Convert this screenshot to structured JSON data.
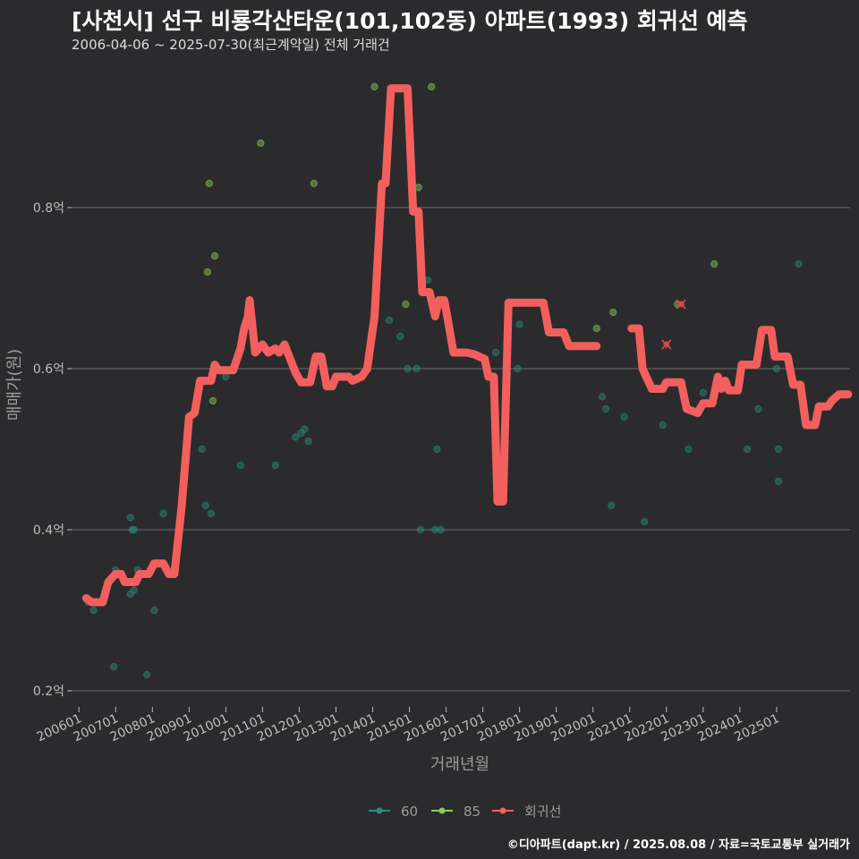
{
  "chart_data": {
    "type": "scatter",
    "title": "[사천시] 선구 비룡각산타운(101,102동) 아파트(1993) 회귀선 예측",
    "subtitle": "2006-04-06 ~ 2025-07-30(최근계약일) 전체 거래건",
    "xlabel": "거래년월",
    "ylabel": "매매가(원)",
    "xlim": [
      2005.8,
      2027.0
    ],
    "ylim": [
      0.18,
      0.98
    ],
    "y_ticks": [
      {
        "value": 0.2,
        "label": "0.2억"
      },
      {
        "value": 0.4,
        "label": "0.4억"
      },
      {
        "value": 0.6,
        "label": "0.6억"
      },
      {
        "value": 0.8,
        "label": "0.8억"
      }
    ],
    "x_ticks": [
      {
        "value": 2006.0,
        "label": "200601"
      },
      {
        "value": 2007.0,
        "label": "200701"
      },
      {
        "value": 2008.0,
        "label": "200801"
      },
      {
        "value": 2009.0,
        "label": "200901"
      },
      {
        "value": 2010.0,
        "label": "201001"
      },
      {
        "value": 2011.0,
        "label": "201101"
      },
      {
        "value": 2012.0,
        "label": "201201"
      },
      {
        "value": 2013.0,
        "label": "201301"
      },
      {
        "value": 2014.0,
        "label": "201401"
      },
      {
        "value": 2015.0,
        "label": "201501"
      },
      {
        "value": 2016.0,
        "label": "201601"
      },
      {
        "value": 2017.0,
        "label": "201701"
      },
      {
        "value": 2018.0,
        "label": "201801"
      },
      {
        "value": 2019.0,
        "label": "201901"
      },
      {
        "value": 2020.0,
        "label": "202001"
      },
      {
        "value": 2021.0,
        "label": "202101"
      },
      {
        "value": 2022.0,
        "label": "202201"
      },
      {
        "value": 2023.0,
        "label": "202301"
      },
      {
        "value": 2024.0,
        "label": "202401"
      },
      {
        "value": 2025.0,
        "label": "202501"
      }
    ],
    "grid": true,
    "legend_position": "bottom",
    "series": [
      {
        "name": "60",
        "kind": "points",
        "color": "#2a8c7e",
        "points": [
          [
            2006.25,
            0.31
          ],
          [
            2006.4,
            0.3
          ],
          [
            2007.0,
            0.35
          ],
          [
            2006.95,
            0.23
          ],
          [
            2007.4,
            0.415
          ],
          [
            2007.45,
            0.4
          ],
          [
            2007.5,
            0.4
          ],
          [
            2007.6,
            0.35
          ],
          [
            2007.4,
            0.32
          ],
          [
            2007.5,
            0.325
          ],
          [
            2007.85,
            0.22
          ],
          [
            2008.05,
            0.3
          ],
          [
            2008.3,
            0.42
          ],
          [
            2009.35,
            0.5
          ],
          [
            2009.45,
            0.43
          ],
          [
            2009.6,
            0.42
          ],
          [
            2010.0,
            0.59
          ],
          [
            2010.4,
            0.48
          ],
          [
            2011.35,
            0.48
          ],
          [
            2011.9,
            0.515
          ],
          [
            2012.05,
            0.52
          ],
          [
            2012.15,
            0.525
          ],
          [
            2012.25,
            0.51
          ],
          [
            2014.45,
            0.66
          ],
          [
            2014.75,
            0.64
          ],
          [
            2014.95,
            0.6
          ],
          [
            2015.2,
            0.6
          ],
          [
            2015.3,
            0.4
          ],
          [
            2015.35,
            0.7
          ],
          [
            2015.5,
            0.71
          ],
          [
            2015.7,
            0.4
          ],
          [
            2015.75,
            0.5
          ],
          [
            2015.85,
            0.4
          ],
          [
            2017.35,
            0.62
          ],
          [
            2017.95,
            0.6
          ],
          [
            2018.0,
            0.655
          ],
          [
            2020.25,
            0.565
          ],
          [
            2020.35,
            0.55
          ],
          [
            2020.5,
            0.43
          ],
          [
            2020.85,
            0.54
          ],
          [
            2021.4,
            0.41
          ],
          [
            2021.9,
            0.53
          ],
          [
            2022.6,
            0.5
          ],
          [
            2023.0,
            0.57
          ],
          [
            2024.2,
            0.5
          ],
          [
            2024.5,
            0.55
          ],
          [
            2025.0,
            0.6
          ],
          [
            2025.05,
            0.5
          ],
          [
            2025.05,
            0.46
          ],
          [
            2025.6,
            0.73
          ]
        ]
      },
      {
        "name": "85",
        "kind": "points",
        "color": "#8ccc5a",
        "points": [
          [
            2009.5,
            0.72
          ],
          [
            2009.55,
            0.83
          ],
          [
            2009.7,
            0.74
          ],
          [
            2009.65,
            0.56
          ],
          [
            2010.95,
            0.88
          ],
          [
            2012.4,
            0.83
          ],
          [
            2014.05,
            0.95
          ],
          [
            2014.9,
            0.68
          ],
          [
            2015.25,
            0.825
          ],
          [
            2015.6,
            0.95
          ],
          [
            2020.1,
            0.65
          ],
          [
            2020.55,
            0.67
          ],
          [
            2023.3,
            0.73
          ],
          [
            2022.3,
            0.68
          ]
        ]
      },
      {
        "name": "회귀선",
        "kind": "step_line",
        "color": "#f25f5c",
        "points": [
          [
            2006.2,
            0.315
          ],
          [
            2006.35,
            0.31
          ],
          [
            2006.65,
            0.31
          ],
          [
            2006.8,
            0.335
          ],
          [
            2007.0,
            0.345
          ],
          [
            2007.15,
            0.345
          ],
          [
            2007.25,
            0.335
          ],
          [
            2007.55,
            0.335
          ],
          [
            2007.65,
            0.345
          ],
          [
            2007.9,
            0.345
          ],
          [
            2008.05,
            0.358
          ],
          [
            2008.3,
            0.358
          ],
          [
            2008.45,
            0.345
          ],
          [
            2008.6,
            0.345
          ],
          [
            2008.8,
            0.43
          ],
          [
            2009.0,
            0.54
          ],
          [
            2009.15,
            0.545
          ],
          [
            2009.3,
            0.585
          ],
          [
            2009.6,
            0.585
          ],
          [
            2009.7,
            0.605
          ],
          [
            2009.8,
            0.598
          ],
          [
            2010.2,
            0.598
          ],
          [
            2010.4,
            0.625
          ],
          [
            2010.5,
            0.65
          ],
          [
            2010.6,
            0.665
          ],
          [
            2010.65,
            0.685
          ],
          [
            2010.8,
            0.62
          ],
          [
            2011.0,
            0.63
          ],
          [
            2011.15,
            0.62
          ],
          [
            2011.35,
            0.625
          ],
          [
            2011.45,
            0.62
          ],
          [
            2011.6,
            0.63
          ],
          [
            2011.9,
            0.595
          ],
          [
            2012.05,
            0.583
          ],
          [
            2012.3,
            0.583
          ],
          [
            2012.45,
            0.615
          ],
          [
            2012.6,
            0.615
          ],
          [
            2012.75,
            0.578
          ],
          [
            2012.9,
            0.578
          ],
          [
            2013.0,
            0.59
          ],
          [
            2013.35,
            0.59
          ],
          [
            2013.45,
            0.585
          ],
          [
            2013.7,
            0.59
          ],
          [
            2013.85,
            0.6
          ],
          [
            2014.05,
            0.665
          ],
          [
            2014.25,
            0.83
          ],
          [
            2014.35,
            0.83
          ],
          [
            2014.5,
            0.948
          ],
          [
            2014.95,
            0.948
          ],
          [
            2015.1,
            0.795
          ],
          [
            2015.25,
            0.795
          ],
          [
            2015.35,
            0.695
          ],
          [
            2015.55,
            0.695
          ],
          [
            2015.7,
            0.665
          ],
          [
            2015.8,
            0.685
          ],
          [
            2015.95,
            0.685
          ],
          [
            2016.05,
            0.66
          ],
          [
            2016.2,
            0.62
          ],
          [
            2016.55,
            0.62
          ],
          [
            2016.75,
            0.618
          ],
          [
            2017.05,
            0.612
          ],
          [
            2017.15,
            0.59
          ],
          [
            2017.3,
            0.59
          ],
          [
            2017.4,
            0.435
          ],
          [
            2017.55,
            0.435
          ],
          [
            2017.7,
            0.682
          ],
          [
            2018.65,
            0.682
          ],
          [
            2018.8,
            0.645
          ],
          [
            2019.2,
            0.645
          ],
          [
            2019.35,
            0.628
          ],
          [
            2020.1,
            0.628
          ]
        ]
      },
      {
        "name": "회귀선",
        "kind": "step_line_2",
        "color": "#f25f5c",
        "points": [
          [
            2021.05,
            0.65
          ],
          [
            2021.25,
            0.65
          ],
          [
            2021.35,
            0.6
          ],
          [
            2021.45,
            0.59
          ],
          [
            2021.6,
            0.575
          ],
          [
            2021.9,
            0.575
          ],
          [
            2022.0,
            0.583
          ],
          [
            2022.4,
            0.583
          ],
          [
            2022.55,
            0.55
          ],
          [
            2022.85,
            0.545
          ],
          [
            2023.0,
            0.557
          ],
          [
            2023.25,
            0.557
          ],
          [
            2023.4,
            0.59
          ],
          [
            2023.5,
            0.575
          ],
          [
            2023.6,
            0.585
          ],
          [
            2023.7,
            0.573
          ],
          [
            2023.95,
            0.573
          ],
          [
            2024.05,
            0.605
          ],
          [
            2024.45,
            0.605
          ],
          [
            2024.6,
            0.648
          ],
          [
            2024.85,
            0.648
          ],
          [
            2024.95,
            0.615
          ],
          [
            2025.3,
            0.615
          ],
          [
            2025.45,
            0.58
          ],
          [
            2025.65,
            0.58
          ],
          [
            2025.8,
            0.53
          ],
          [
            2026.05,
            0.53
          ],
          [
            2026.15,
            0.553
          ],
          [
            2026.4,
            0.553
          ],
          [
            2026.5,
            0.56
          ],
          [
            2026.7,
            0.568
          ],
          [
            2026.95,
            0.568
          ]
        ]
      }
    ],
    "outliers": [
      [
        2022.0,
        0.63
      ],
      [
        2022.4,
        0.68
      ]
    ],
    "outlier_color": "#d94b4b",
    "legend": [
      {
        "name": "60",
        "color": "#2a8c7e"
      },
      {
        "name": "85",
        "color": "#8ccc5a"
      },
      {
        "name": "회귀선",
        "color": "#f25f5c"
      }
    ]
  },
  "footer": "©디아파트(dapt.kr) / 2025.08.08 / 자료=국토교통부 실거래가",
  "colors": {
    "background": "#2b2b2d",
    "grid": "#6b6b6b"
  }
}
